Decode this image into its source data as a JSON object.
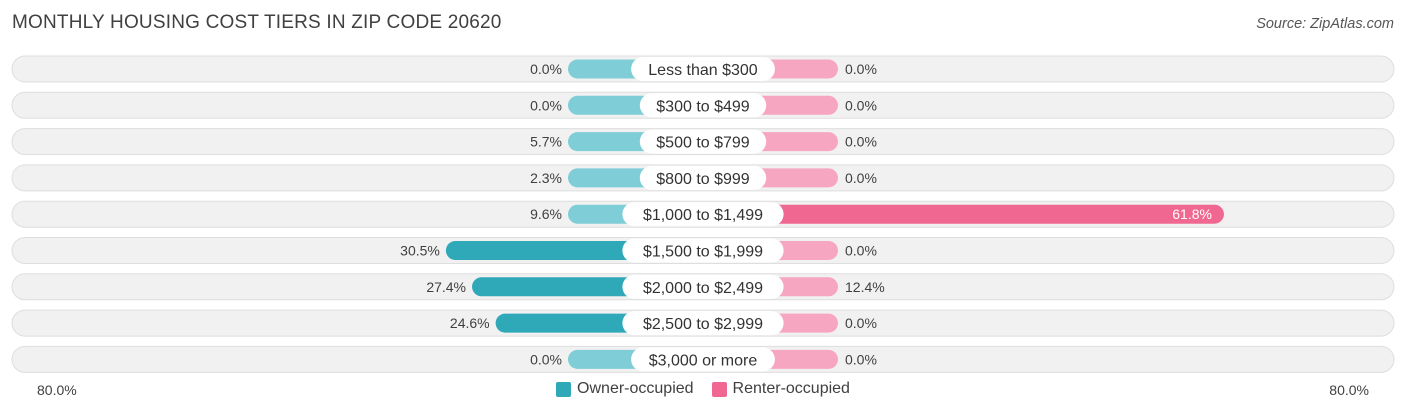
{
  "header": {
    "title": "MONTHLY HOUSING COST TIERS IN ZIP CODE 20620",
    "source": "Source: ZipAtlas.com"
  },
  "axis": {
    "left_label": "80.0%",
    "right_label": "80.0%"
  },
  "legend": {
    "owner_label": "Owner-occupied",
    "renter_label": "Renter-occupied"
  },
  "colors": {
    "owner_light": "#7fcdd6",
    "owner_dark": "#2fa8b8",
    "renter_light": "#f7a6c1",
    "renter_dark": "#f06892"
  },
  "chart_data": {
    "type": "bar",
    "title": "MONTHLY HOUSING COST TIERS IN ZIP CODE 20620",
    "orientation": "diverging-horizontal",
    "xlim": [
      -80,
      80
    ],
    "categories": [
      "Less than $300",
      "$300 to $499",
      "$500 to $799",
      "$800 to $999",
      "$1,000 to $1,499",
      "$1,500 to $1,999",
      "$2,000 to $2,499",
      "$2,500 to $2,999",
      "$3,000 or more"
    ],
    "series": [
      {
        "name": "Owner-occupied",
        "values": [
          0.0,
          0.0,
          5.7,
          2.3,
          9.6,
          30.5,
          27.4,
          24.6,
          0.0
        ],
        "labels": [
          "0.0%",
          "0.0%",
          "5.7%",
          "2.3%",
          "9.6%",
          "30.5%",
          "27.4%",
          "24.6%",
          "0.0%"
        ]
      },
      {
        "name": "Renter-occupied",
        "values": [
          0.0,
          0.0,
          0.0,
          0.0,
          61.8,
          0.0,
          12.4,
          0.0,
          0.0
        ],
        "labels": [
          "0.0%",
          "0.0%",
          "0.0%",
          "0.0%",
          "61.8%",
          "0.0%",
          "12.4%",
          "0.0%",
          "0.0%"
        ]
      }
    ],
    "legend_position": "bottom-center"
  }
}
